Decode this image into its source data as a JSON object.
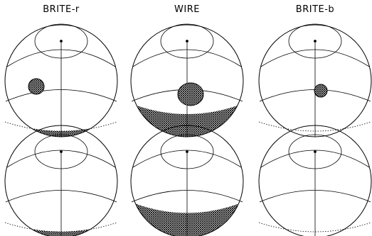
{
  "panels": [
    {
      "title": "BRITE-r",
      "spot": "true",
      "band": "thin"
    },
    {
      "title": "WIRE",
      "spot": "true",
      "band": "thick"
    },
    {
      "title": "BRITE-b",
      "spot": "true",
      "band": "none"
    }
  ],
  "colors": {
    "line": "#000000",
    "hatch": "#000000",
    "background": "#ffffff"
  }
}
